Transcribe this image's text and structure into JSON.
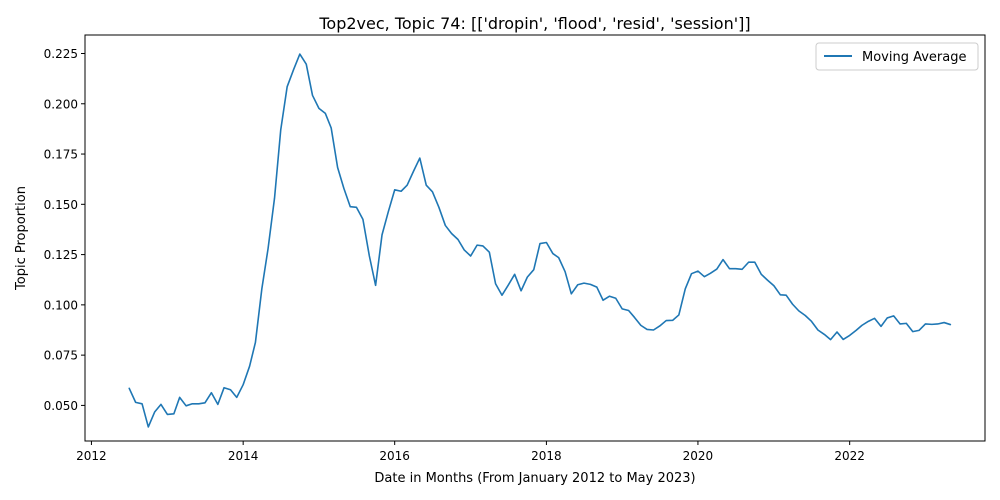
{
  "chart_data": {
    "type": "line",
    "title": "Top2vec, Topic 74: [['dropin', 'flood', 'resid', 'session']]",
    "xlabel": "Date in Months (From January 2012 to May 2023)",
    "ylabel": "Topic Proportion",
    "xlim": [
      "2011-12-01",
      "2023-10-15"
    ],
    "ylim": [
      0.0323,
      0.2342
    ],
    "x_ticks": [
      "2012-01-01",
      "2014-01-01",
      "2016-01-01",
      "2018-01-01",
      "2020-01-01",
      "2022-01-01"
    ],
    "x_tick_labels": [
      "2012",
      "2014",
      "2016",
      "2018",
      "2020",
      "2022"
    ],
    "y_ticks": [
      0.05,
      0.075,
      0.1,
      0.125,
      0.15,
      0.175,
      0.2,
      0.225
    ],
    "y_tick_labels": [
      "0.050",
      "0.075",
      "0.100",
      "0.125",
      "0.150",
      "0.175",
      "0.200",
      "0.225"
    ],
    "legend_position": "top-right",
    "grid": false,
    "series": [
      {
        "name": "Moving Average",
        "color": "#1f77b4",
        "x": [
          "2012-07",
          "2012-08",
          "2012-09",
          "2012-10",
          "2012-11",
          "2012-12",
          "2013-01",
          "2013-02",
          "2013-03",
          "2013-04",
          "2013-05",
          "2013-06",
          "2013-07",
          "2013-08",
          "2013-09",
          "2013-10",
          "2013-11",
          "2013-12",
          "2014-01",
          "2014-02",
          "2014-03",
          "2014-04",
          "2014-05",
          "2014-06",
          "2014-07",
          "2014-08",
          "2014-09",
          "2014-10",
          "2014-11",
          "2014-12",
          "2015-01",
          "2015-02",
          "2015-03",
          "2015-04",
          "2015-05",
          "2015-06",
          "2015-07",
          "2015-08",
          "2015-09",
          "2015-10",
          "2015-11",
          "2015-12",
          "2016-01",
          "2016-02",
          "2016-03",
          "2016-04",
          "2016-05",
          "2016-06",
          "2016-07",
          "2016-08",
          "2016-09",
          "2016-10",
          "2016-11",
          "2016-12",
          "2017-01",
          "2017-02",
          "2017-03",
          "2017-04",
          "2017-05",
          "2017-06",
          "2017-07",
          "2017-08",
          "2017-09",
          "2017-10",
          "2017-11",
          "2017-12",
          "2018-01",
          "2018-02",
          "2018-03",
          "2018-04",
          "2018-05",
          "2018-06",
          "2018-07",
          "2018-08",
          "2018-09",
          "2018-10",
          "2018-11",
          "2018-12",
          "2019-01",
          "2019-02",
          "2019-03",
          "2019-04",
          "2019-05",
          "2019-06",
          "2019-07",
          "2019-08",
          "2019-09",
          "2019-10",
          "2019-11",
          "2019-12",
          "2020-01",
          "2020-02",
          "2020-03",
          "2020-04",
          "2020-05",
          "2020-06",
          "2020-07",
          "2020-08",
          "2020-09",
          "2020-10",
          "2020-11",
          "2020-12",
          "2021-01",
          "2021-02",
          "2021-03",
          "2021-04",
          "2021-05",
          "2021-06",
          "2021-07",
          "2021-08",
          "2021-09",
          "2021-10",
          "2021-11",
          "2021-12",
          "2022-01",
          "2022-02",
          "2022-03",
          "2022-04",
          "2022-05",
          "2022-06",
          "2022-07",
          "2022-08",
          "2022-09",
          "2022-10",
          "2022-11",
          "2022-12",
          "2023-01",
          "2023-02",
          "2023-03",
          "2023-04",
          "2023-05"
        ],
        "y": [
          0.0585,
          0.0515,
          0.0508,
          0.0393,
          0.0468,
          0.0505,
          0.0455,
          0.0458,
          0.054,
          0.0498,
          0.0508,
          0.0508,
          0.0513,
          0.0563,
          0.0505,
          0.0588,
          0.0578,
          0.054,
          0.0603,
          0.0695,
          0.0813,
          0.108,
          0.128,
          0.153,
          0.187,
          0.2085,
          0.217,
          0.2247,
          0.2197,
          0.2042,
          0.1977,
          0.1952,
          0.188,
          0.1683,
          0.158,
          0.1488,
          0.1485,
          0.1425,
          0.1243,
          0.1097,
          0.1348,
          0.1462,
          0.1572,
          0.1565,
          0.1595,
          0.1665,
          0.173,
          0.1595,
          0.1562,
          0.1485,
          0.1395,
          0.1355,
          0.1325,
          0.1273,
          0.1243,
          0.1297,
          0.1293,
          0.1262,
          0.1105,
          0.1048,
          0.1098,
          0.1152,
          0.107,
          0.1138,
          0.1175,
          0.1305,
          0.131,
          0.1255,
          0.1235,
          0.1165,
          0.1055,
          0.11,
          0.1108,
          0.1102,
          0.1088,
          0.1023,
          0.1043,
          0.1033,
          0.098,
          0.0972,
          0.0938,
          0.0898,
          0.0878,
          0.0875,
          0.0895,
          0.0922,
          0.0923,
          0.095,
          0.108,
          0.1155,
          0.1168,
          0.114,
          0.1157,
          0.1178,
          0.1225,
          0.118,
          0.118,
          0.1177,
          0.1212,
          0.1212,
          0.1152,
          0.1123,
          0.1095,
          0.105,
          0.1048,
          0.1003,
          0.097,
          0.0947,
          0.0918,
          0.0875,
          0.0853,
          0.0827,
          0.0865,
          0.0828,
          0.0848,
          0.0873,
          0.0898,
          0.0918,
          0.0933,
          0.0893,
          0.0935,
          0.0945,
          0.0905,
          0.0908,
          0.0867,
          0.0873,
          0.0905,
          0.0903,
          0.0905,
          0.0912,
          0.0902
        ]
      }
    ]
  }
}
